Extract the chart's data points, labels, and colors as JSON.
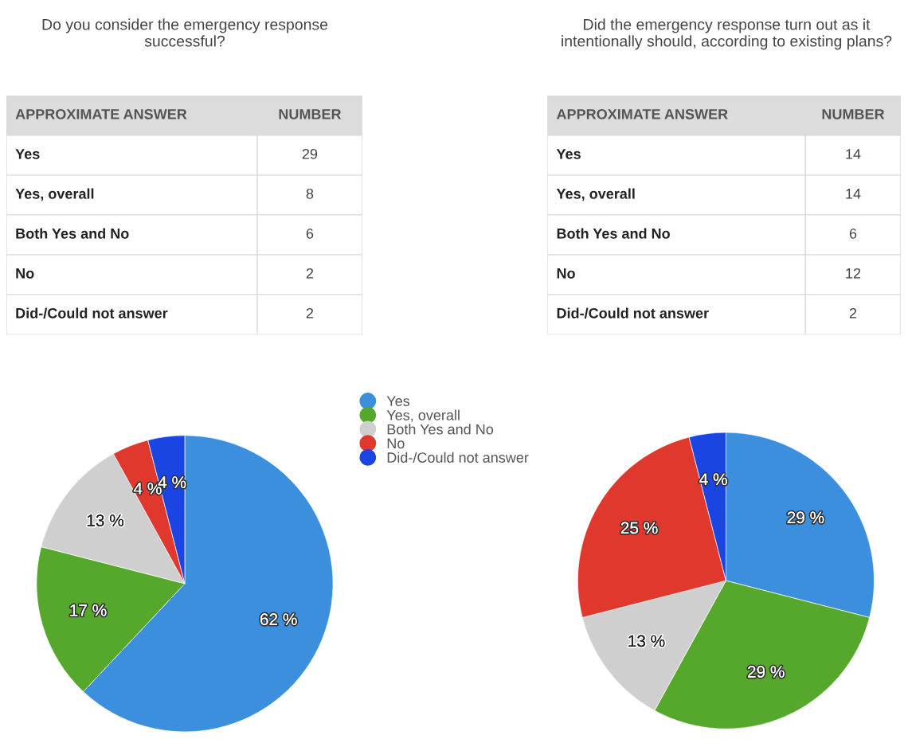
{
  "chart_data": [
    {
      "type": "other",
      "title": "Do you consider the emergency response successful?",
      "annotations": [
        "APPROXIMATE ANSWER",
        "NUMBER"
      ],
      "categories": [
        "Yes",
        "Yes, overall",
        "Both Yes and No",
        "No",
        "Did-/Could not answer"
      ],
      "values": [
        29,
        8,
        6,
        2,
        2
      ],
      "data_labels": true
    },
    {
      "type": "other",
      "title": "Did the emergency response turn out as it intentionally should, according to existing plans?",
      "annotations": [
        "APPROXIMATE ANSWER",
        "NUMBER"
      ],
      "categories": [
        "Yes",
        "Yes, overall",
        "Both Yes and No",
        "No",
        "Did-/Could not answer"
      ],
      "values": [
        14,
        14,
        6,
        12,
        2
      ],
      "data_labels": true
    },
    {
      "type": "pie",
      "categories": [
        "Yes",
        "Yes, overall",
        "Both Yes and No",
        "No",
        "Did-/Could not answer"
      ],
      "values": [
        62,
        17,
        13,
        4,
        4
      ],
      "value_labels": [
        "62 %",
        "17 %",
        "13 %",
        "4 %",
        "4 %"
      ],
      "colors": [
        "#3b8fdd",
        "#56a82c",
        "#cfcfcf",
        "#e1382d",
        "#1b45e3"
      ],
      "legend": "right"
    },
    {
      "type": "pie",
      "categories": [
        null,
        null,
        null,
        null,
        null
      ],
      "values": [
        29,
        29,
        13,
        25,
        4
      ],
      "value_labels": [
        "29 %",
        "29 %",
        "13 %",
        "25 %",
        "4 %"
      ],
      "colors": [
        "#3b8fdd",
        "#56a82c",
        "#cfcfcf",
        "#e1382d",
        "#1b45e3"
      ]
    }
  ]
}
